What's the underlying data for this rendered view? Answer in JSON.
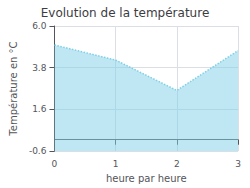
{
  "chart_data": {
    "type": "area",
    "title": "Evolution de la température",
    "xlabel": "heure par heure",
    "ylabel": "Température en °C",
    "x": [
      0,
      1,
      2,
      3
    ],
    "values": [
      5.0,
      4.2,
      2.6,
      4.7
    ],
    "color": "#7ecfe8",
    "line_style": "dotted",
    "xlim": [
      0,
      3
    ],
    "xticks": [
      0,
      1,
      2,
      3
    ],
    "ylim": [
      -0.6,
      6.0
    ],
    "yticks": [
      -0.6,
      1.6,
      3.8,
      {
        "value": 6.0,
        "label": "6.0"
      }
    ],
    "grid": true
  }
}
